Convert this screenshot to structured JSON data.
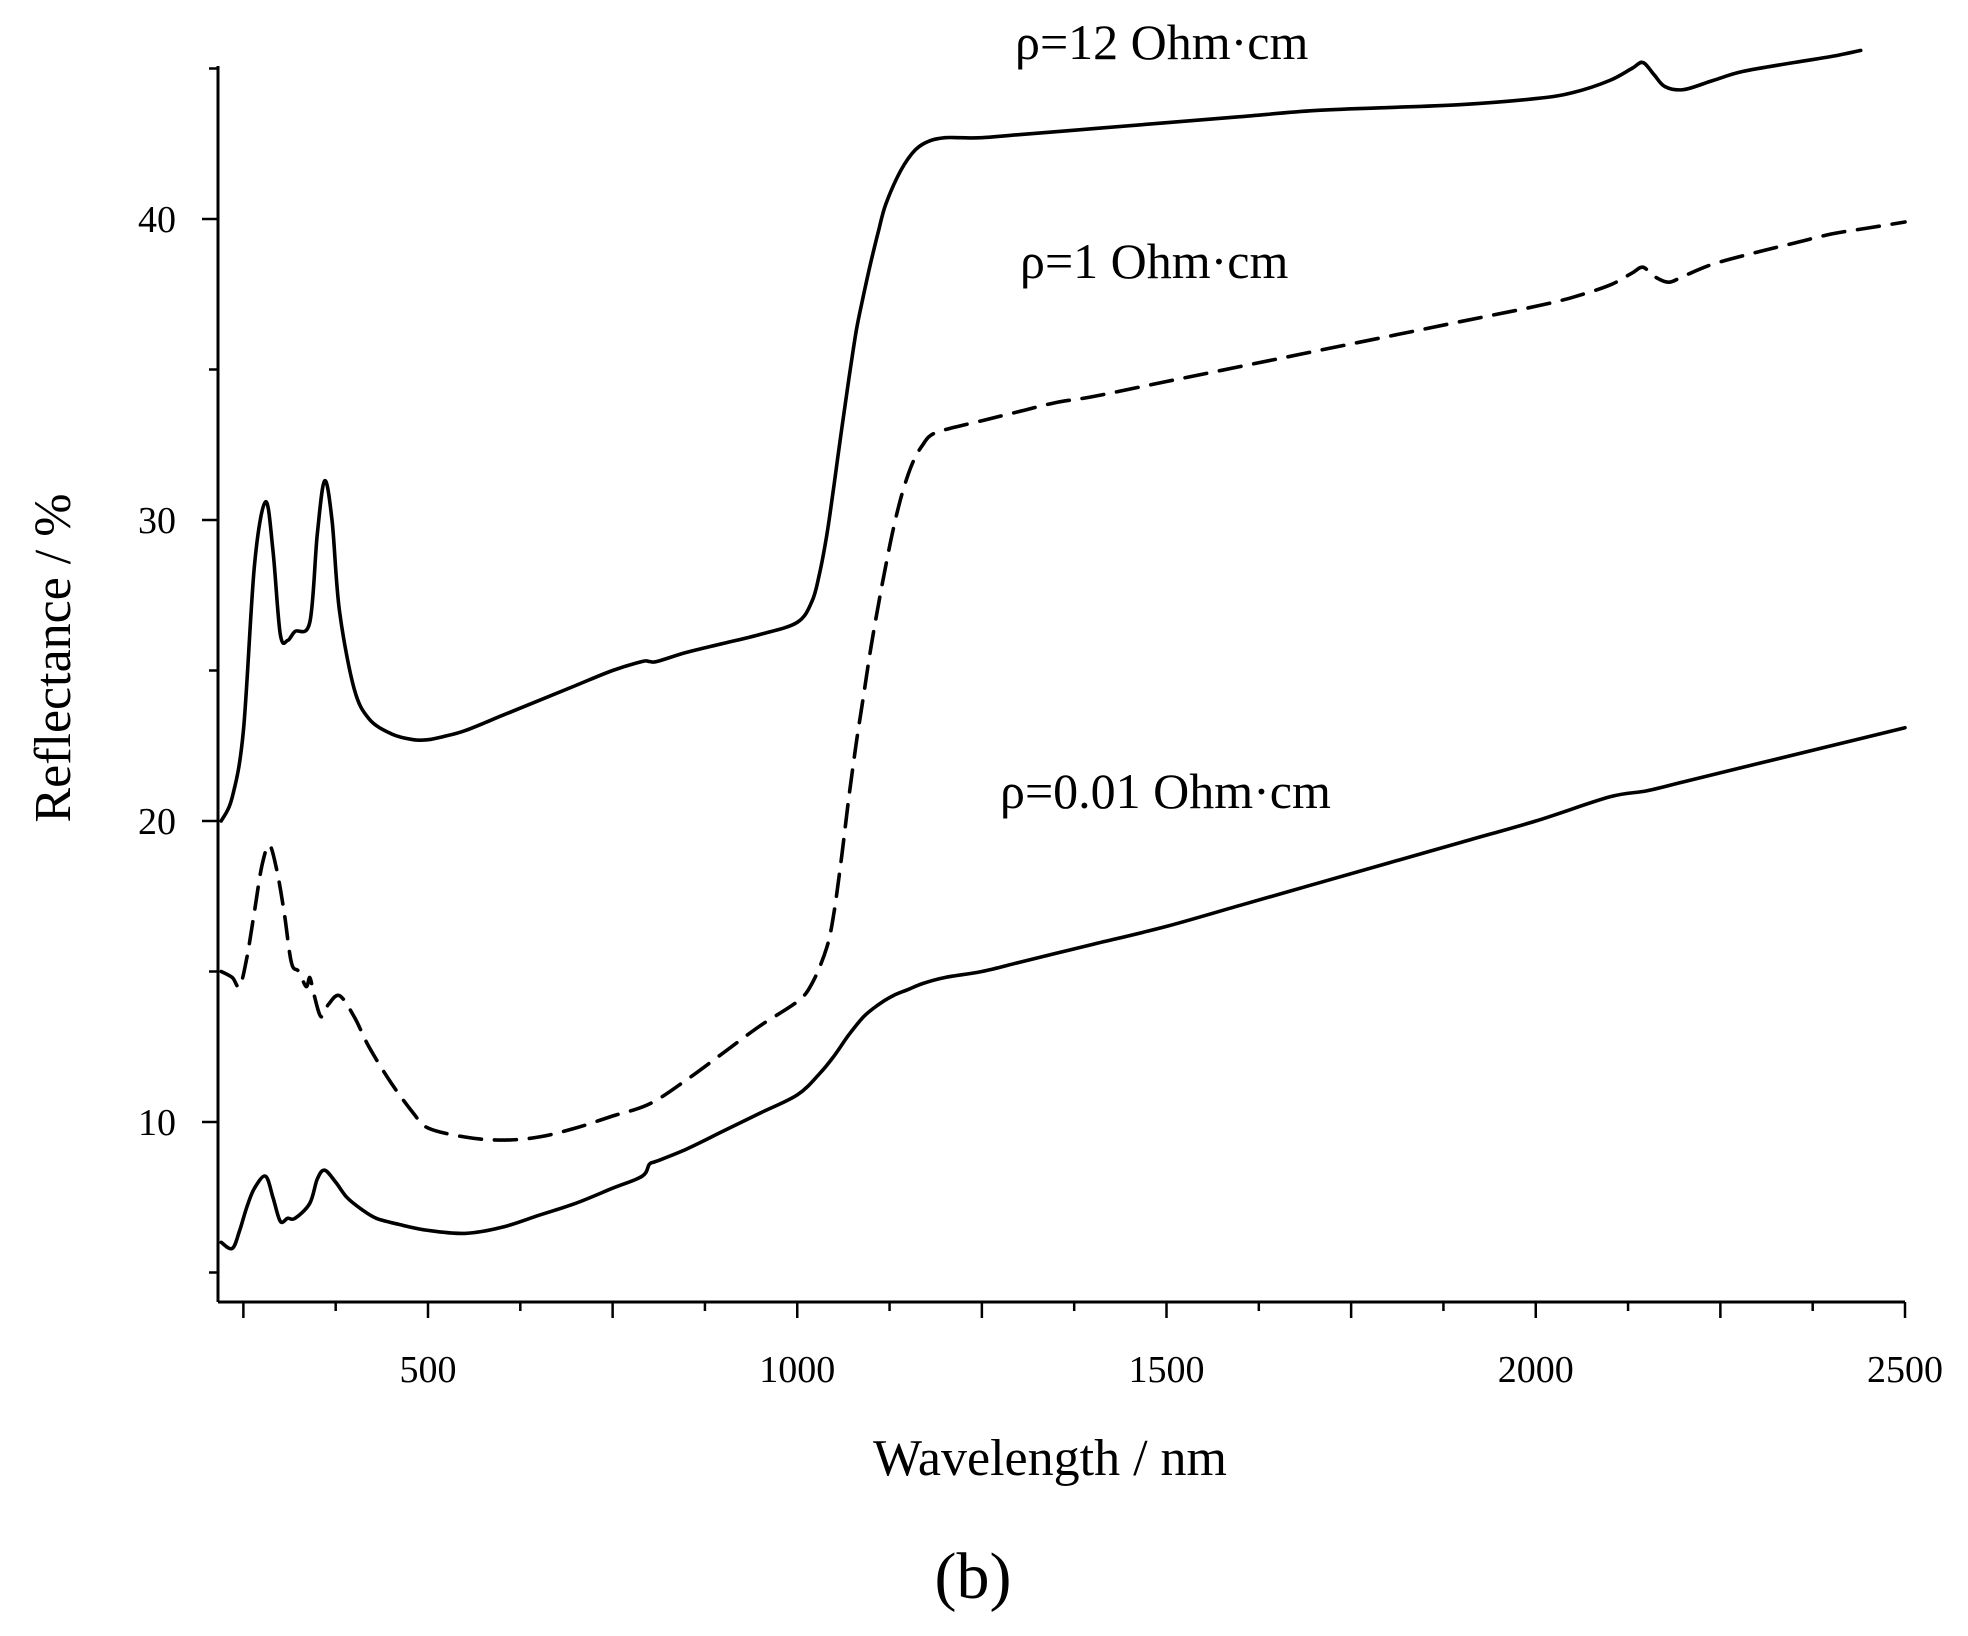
{
  "chart_data": {
    "type": "line",
    "title": "",
    "xlabel": "Wavelength / nm",
    "ylabel": "Reflectance / %",
    "xlim": [
      220,
      2500
    ],
    "ylim": [
      4,
      45
    ],
    "x_ticks": [
      500,
      1000,
      1500,
      2000,
      2500
    ],
    "x_tick_labels": [
      "500",
      "1000",
      "1500",
      "2000",
      "2500"
    ],
    "y_ticks": [
      10,
      20,
      30,
      40
    ],
    "y_tick_labels": [
      "10",
      "20",
      "30",
      "40"
    ],
    "grid": false,
    "legend": "none",
    "caption": "(b)",
    "series": [
      {
        "name": "rho-12",
        "label": "ρ=12 Ohm·cm",
        "style": "solid",
        "x": [
          220,
          235,
          250,
          265,
          280,
          290,
          300,
          310,
          320,
          340,
          350,
          360,
          370,
          380,
          400,
          420,
          450,
          480,
          500,
          520,
          550,
          600,
          650,
          700,
          750,
          790,
          800,
          810,
          850,
          900,
          950,
          1000,
          1020,
          1030,
          1040,
          1050,
          1060,
          1070,
          1080,
          1090,
          1100,
          1110,
          1120,
          1140,
          1160,
          1180,
          1200,
          1220,
          1250,
          1300,
          1400,
          1500,
          1600,
          1700,
          1800,
          1900,
          2000,
          2050,
          2100,
          2130,
          2145,
          2160,
          2175,
          2200,
          2240,
          2280,
          2350,
          2400,
          2440
        ],
        "values": [
          20,
          20.8,
          23,
          28.5,
          30.6,
          29,
          26.2,
          26,
          26.3,
          26.6,
          29.5,
          31.3,
          30,
          27,
          24.4,
          23.4,
          22.9,
          22.7,
          22.7,
          22.8,
          23,
          23.5,
          24,
          24.5,
          25,
          25.3,
          25.3,
          25.3,
          25.6,
          25.9,
          26.2,
          26.6,
          27.3,
          28.2,
          29.5,
          31.2,
          33,
          34.7,
          36.3,
          37.5,
          38.6,
          39.6,
          40.5,
          41.6,
          42.3,
          42.6,
          42.7,
          42.7,
          42.7,
          42.8,
          43,
          43.2,
          43.4,
          43.6,
          43.7,
          43.8,
          44,
          44.2,
          44.6,
          45,
          45.2,
          44.8,
          44.4,
          44.3,
          44.6,
          44.9,
          45.2,
          45.4,
          45.6
        ]
      },
      {
        "name": "rho-1",
        "label": "ρ=1 Ohm·cm",
        "style": "dashed",
        "x": [
          220,
          235,
          245,
          255,
          265,
          275,
          285,
          295,
          305,
          315,
          325,
          335,
          340,
          345,
          355,
          365,
          380,
          400,
          420,
          450,
          480,
          500,
          550,
          600,
          650,
          700,
          750,
          800,
          850,
          900,
          950,
          1000,
          1020,
          1040,
          1050,
          1060,
          1070,
          1080,
          1090,
          1100,
          1110,
          1120,
          1130,
          1140,
          1150,
          1160,
          1170,
          1180,
          1200,
          1250,
          1300,
          1350,
          1400,
          1500,
          1600,
          1700,
          1800,
          1900,
          2000,
          2050,
          2100,
          2130,
          2145,
          2160,
          2180,
          2200,
          2240,
          2300,
          2350,
          2400,
          2450,
          2500
        ],
        "values": [
          15,
          14.8,
          14.5,
          15.5,
          17,
          18.5,
          19.2,
          18.4,
          17,
          15.3,
          15,
          14.5,
          14.8,
          14.3,
          13.5,
          13.9,
          14.2,
          13.5,
          12.5,
          11.3,
          10.3,
          9.8,
          9.5,
          9.4,
          9.5,
          9.8,
          10.2,
          10.6,
          11.4,
          12.3,
          13.2,
          14,
          14.6,
          15.8,
          17,
          18.8,
          20.8,
          22.6,
          24.2,
          25.8,
          27.2,
          28.5,
          29.7,
          30.7,
          31.5,
          32.1,
          32.5,
          32.8,
          33,
          33.3,
          33.6,
          33.9,
          34.1,
          34.6,
          35.1,
          35.6,
          36.1,
          36.6,
          37.1,
          37.4,
          37.8,
          38.2,
          38.4,
          38.1,
          37.9,
          38.1,
          38.5,
          38.9,
          39.2,
          39.5,
          39.7,
          39.9
        ]
      },
      {
        "name": "rho-0.01",
        "label": "ρ=0.01 Ohm·cm",
        "style": "solid",
        "x": [
          220,
          235,
          245,
          255,
          265,
          280,
          290,
          300,
          310,
          320,
          340,
          350,
          360,
          375,
          390,
          410,
          430,
          460,
          500,
          550,
          600,
          650,
          700,
          750,
          790,
          800,
          810,
          850,
          900,
          950,
          1000,
          1030,
          1050,
          1070,
          1090,
          1110,
          1130,
          1150,
          1170,
          1200,
          1250,
          1300,
          1350,
          1400,
          1500,
          1600,
          1700,
          1800,
          1900,
          2000,
          2100,
          2150,
          2200,
          2300,
          2400,
          2500
        ],
        "values": [
          6,
          5.8,
          6.4,
          7.2,
          7.8,
          8.2,
          7.5,
          6.7,
          6.8,
          6.8,
          7.3,
          8.1,
          8.4,
          8,
          7.5,
          7.1,
          6.8,
          6.6,
          6.4,
          6.3,
          6.5,
          6.9,
          7.3,
          7.8,
          8.2,
          8.6,
          8.7,
          9.1,
          9.7,
          10.3,
          10.9,
          11.6,
          12.2,
          12.9,
          13.5,
          13.9,
          14.2,
          14.4,
          14.6,
          14.8,
          15,
          15.3,
          15.6,
          15.9,
          16.5,
          17.2,
          17.9,
          18.6,
          19.3,
          20,
          20.8,
          21,
          21.3,
          21.9,
          22.5,
          23.1
        ]
      }
    ]
  }
}
